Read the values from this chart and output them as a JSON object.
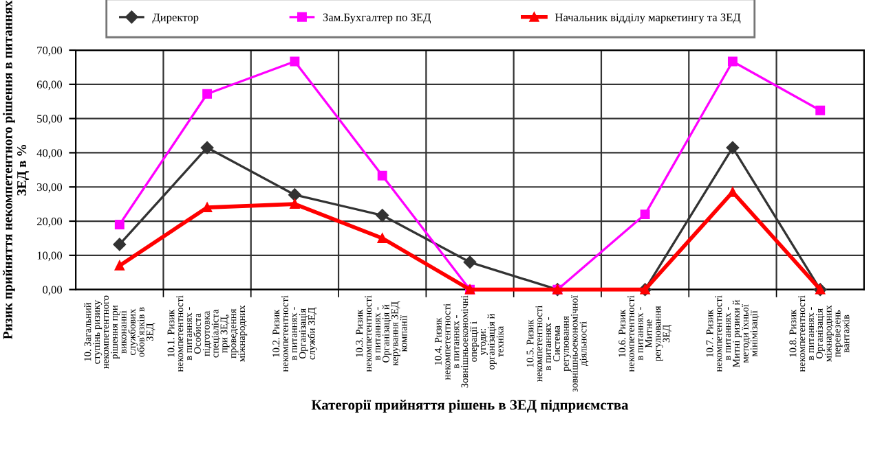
{
  "chart_data": {
    "type": "line",
    "xlabel": "Категорії прийняття рішень в ЗЕД підприємства",
    "ylabel": "Ризик прийняття некомпетентного рішення в питаннях ЗЕД в %",
    "categories": [
      "10. Загальний ступінь ризику некомпетентного рішення при виконанні службових обов'язків в ЗЕД",
      "10.1. Ризик некомпетентності в питаннях - Особиста підготовка спеціаліста при ЗЕД, проведення міжнародних",
      "10.2. Ризик некомпетентності в питаннях - Організація служби ЗЕД",
      "10.3. Ризик некомпетентності в питаннях - Організація й керування ЗЕД компанії",
      "10.4. Ризик некомпетентності в питаннях - Зовнішньоекономічні операції і угоди: організація й техніка",
      "10.5. Ризик некомпетентності в питаннях - Система регулювання зовнішньоекономічної діяльності",
      "10.6. Ризик некомпетентності в питаннях - Митне регулювання ЗЕД",
      "10.7. Ризик некомпетентності в питаннях - Митні ризики й методи їхньої мінімізації",
      "10.8. Ризик некомпетентності в питаннях - Організація міжнародних перевезень вантажів"
    ],
    "series": [
      {
        "name": "Директор",
        "color": "#333333",
        "marker": "diamond",
        "values": [
          13.2,
          41.5,
          27.7,
          21.7,
          8.0,
          0,
          0,
          41.5,
          0
        ]
      },
      {
        "name": "Зам.Бухгалтер по ЗЕД",
        "color": "#ff00ff",
        "marker": "square",
        "values": [
          19.0,
          57.2,
          66.7,
          33.3,
          0,
          0,
          22.0,
          66.7,
          52.4
        ]
      },
      {
        "name": "Начальник відділу маркетингу та ЗЕД",
        "color": "#ff0000",
        "marker": "triangle",
        "values": [
          7.0,
          24.0,
          25.0,
          15.0,
          0,
          0,
          0,
          28.5,
          0
        ]
      }
    ],
    "ylim": [
      0,
      70
    ],
    "yticks": [
      {
        "value": 0,
        "label": "0,00"
      },
      {
        "value": 10,
        "label": "10,00"
      },
      {
        "value": 20,
        "label": "20,00"
      },
      {
        "value": 30,
        "label": "30,00"
      },
      {
        "value": 40,
        "label": "40,00"
      },
      {
        "value": 50,
        "label": "50,00"
      },
      {
        "value": 60,
        "label": "60,00"
      },
      {
        "value": 70,
        "label": "70,00"
      }
    ],
    "grid": true,
    "legend": "top",
    "line_style": "solid"
  }
}
